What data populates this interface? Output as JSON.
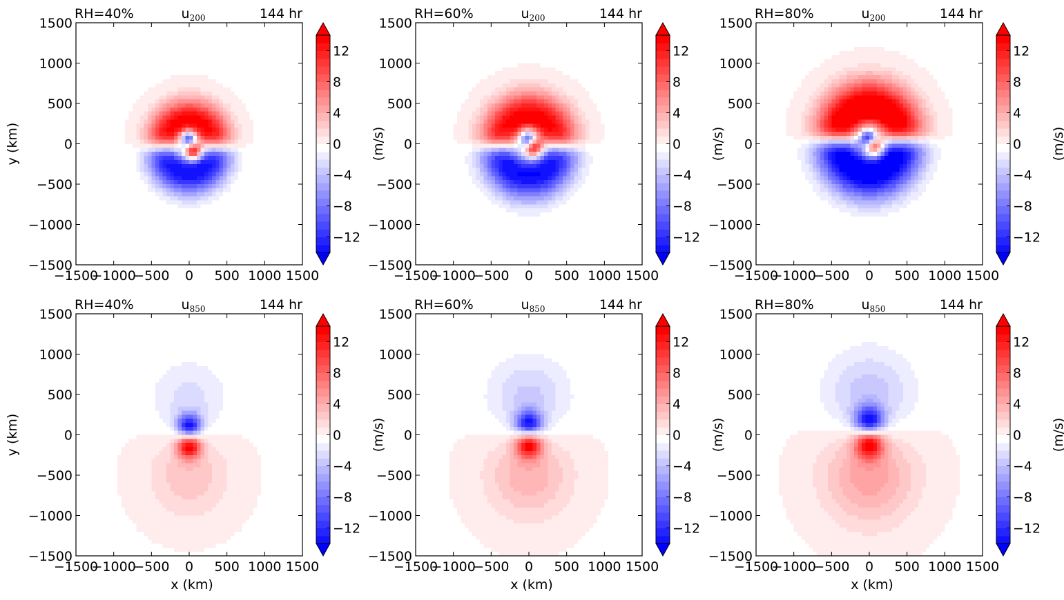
{
  "figure": {
    "colorbar": {
      "ticks": [
        -12,
        -8,
        -4,
        0,
        4,
        8,
        12
      ],
      "tick_labels": [
        "−12",
        "−8",
        "−4",
        "0",
        "4",
        "8",
        "12"
      ],
      "label": "(m/s)",
      "range": [
        -14,
        14
      ],
      "levels_step": 1,
      "colormap": "bwr",
      "extend": "both",
      "neg_color": "#0000ff",
      "pos_color": "#ff0000",
      "mid_color": "#ffffff"
    },
    "axes": {
      "xlim": [
        -1500,
        1500
      ],
      "ylim": [
        -1500,
        1500
      ],
      "xticks": [
        -1500,
        -1000,
        -500,
        0,
        500,
        1000,
        1500
      ],
      "yticks": [
        -1500,
        -1000,
        -500,
        0,
        500,
        1000,
        1500
      ],
      "xtick_labels": [
        "−1500",
        "−1000",
        "−500",
        "0",
        "500",
        "1000",
        "1500"
      ],
      "ytick_labels": [
        "−1500",
        "−1000",
        "−500",
        "0",
        "500",
        "1000",
        "1500"
      ],
      "xlabel": "x (km)",
      "ylabel": "y (km)"
    }
  },
  "chart_data": [
    {
      "type": "heatmap",
      "variable": "u",
      "level": "200",
      "rh": "RH=40%",
      "time": "144 hr",
      "xlabel": "",
      "ylabel": "y (km)",
      "core": {
        "y_pos": -100,
        "y_neg": 80,
        "amp": 14,
        "r": 70
      },
      "outer": {
        "center_y": -40,
        "extent": 730,
        "amp": 14
      }
    },
    {
      "type": "heatmap",
      "variable": "u",
      "level": "200",
      "rh": "RH=60%",
      "time": "144 hr",
      "xlabel": "",
      "ylabel": "",
      "core": {
        "y_pos": -50,
        "y_neg": 70,
        "amp": 14,
        "r": 80
      },
      "outer": {
        "center_y": -30,
        "extent": 830,
        "amp": 14
      }
    },
    {
      "type": "heatmap",
      "variable": "u",
      "level": "200",
      "rh": "RH=80%",
      "time": "144 hr",
      "xlabel": "",
      "ylabel": "",
      "core": {
        "y_pos": -40,
        "y_neg": 70,
        "amp": 14,
        "r": 85
      },
      "outer": {
        "center_y": 50,
        "extent": 920,
        "amp": 16
      }
    },
    {
      "type": "heatmap",
      "variable": "u",
      "level": "850",
      "rh": "RH=40%",
      "time": "144 hr",
      "xlabel": "x (km)",
      "ylabel": "y (km)",
      "core": {
        "y_pos": -130,
        "y_neg": 100,
        "amp": 14,
        "r": 110
      },
      "outer": {
        "neg_center_y": 400,
        "pos_center_y": -480,
        "neg_amp": 2.5,
        "pos_amp": 3,
        "extent": 620
      }
    },
    {
      "type": "heatmap",
      "variable": "u",
      "level": "850",
      "rh": "RH=60%",
      "time": "144 hr",
      "xlabel": "x (km)",
      "ylabel": "",
      "core": {
        "y_pos": -110,
        "y_neg": 120,
        "amp": 14,
        "r": 120
      },
      "outer": {
        "neg_center_y": 420,
        "pos_center_y": -470,
        "neg_amp": 3.5,
        "pos_amp": 4,
        "extent": 660
      }
    },
    {
      "type": "heatmap",
      "variable": "u",
      "level": "850",
      "rh": "RH=80%",
      "time": "144 hr",
      "xlabel": "x (km)",
      "ylabel": "",
      "core": {
        "y_pos": -100,
        "y_neg": 160,
        "amp": 14,
        "r": 130
      },
      "outer": {
        "neg_center_y": 450,
        "pos_center_y": -480,
        "neg_amp": 4,
        "pos_amp": 5,
        "extent": 720
      }
    }
  ]
}
